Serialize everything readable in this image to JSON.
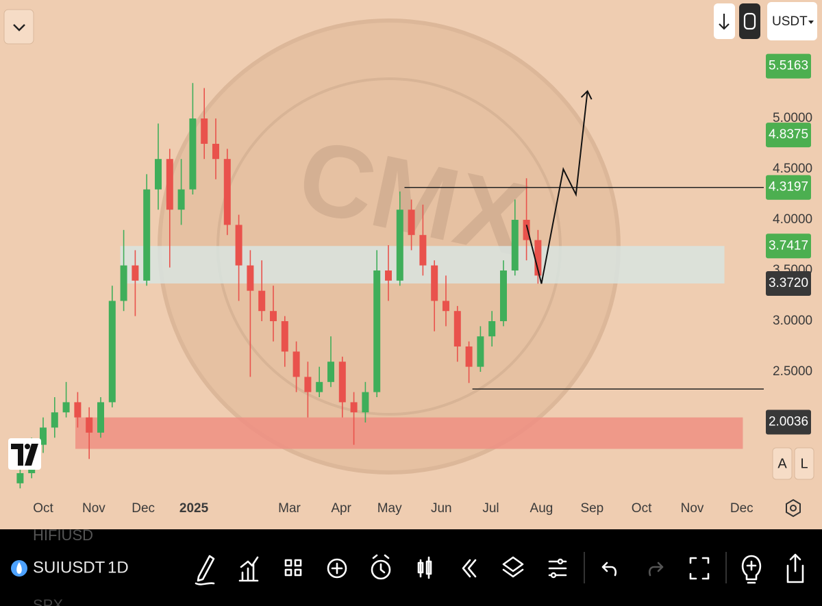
{
  "top_bar": {
    "currency": "USDT"
  },
  "chart_data": {
    "type": "candlestick",
    "x": [
      -2,
      -1,
      0,
      1,
      2,
      3,
      4,
      5,
      6,
      7,
      8,
      9,
      10,
      11,
      12,
      13,
      14,
      15,
      16,
      17,
      18,
      19,
      20,
      21,
      22,
      23,
      24,
      25,
      26,
      27,
      28,
      29,
      30,
      31,
      32,
      33,
      34,
      35,
      36,
      37,
      38,
      39,
      40,
      41,
      42,
      43
    ],
    "open": [
      1.4,
      1.5,
      1.78,
      1.95,
      2.1,
      2.2,
      2.05,
      1.9,
      2.2,
      3.2,
      3.55,
      3.4,
      4.3,
      4.6,
      4.1,
      4.3,
      5.0,
      4.75,
      4.6,
      3.95,
      3.55,
      3.3,
      3.1,
      3.0,
      2.7,
      2.45,
      2.3,
      2.4,
      2.6,
      2.2,
      2.1,
      2.3,
      3.5,
      3.4,
      4.1,
      3.85,
      3.55,
      3.2,
      3.1,
      2.75,
      2.55,
      2.85,
      3.0,
      3.5,
      4.0,
      3.8
    ],
    "high": [
      1.55,
      1.85,
      2.05,
      2.25,
      2.4,
      2.3,
      2.15,
      2.25,
      3.35,
      3.9,
      3.7,
      4.45,
      4.95,
      4.7,
      4.6,
      5.35,
      5.3,
      5.0,
      4.7,
      4.05,
      3.7,
      3.6,
      3.35,
      3.05,
      2.8,
      2.6,
      2.55,
      2.85,
      2.65,
      2.3,
      2.4,
      3.7,
      3.75,
      4.28,
      4.2,
      4.15,
      3.6,
      3.45,
      3.15,
      2.8,
      2.95,
      3.1,
      3.6,
      4.2,
      4.41,
      3.9
    ],
    "low": [
      1.35,
      1.45,
      1.7,
      1.85,
      2.05,
      1.95,
      1.64,
      1.85,
      2.15,
      3.1,
      3.05,
      3.35,
      4.1,
      3.53,
      3.95,
      4.25,
      4.6,
      4.4,
      3.85,
      3.2,
      2.45,
      3.0,
      2.8,
      2.55,
      2.3,
      2.05,
      2.25,
      2.35,
      2.05,
      1.78,
      2.0,
      2.25,
      3.2,
      3.35,
      3.7,
      3.45,
      2.9,
      2.95,
      2.6,
      2.39,
      2.5,
      2.75,
      2.95,
      3.45,
      3.6,
      3.37
    ],
    "close": [
      1.5,
      1.78,
      1.95,
      2.1,
      2.2,
      2.05,
      1.9,
      2.2,
      3.2,
      3.55,
      3.4,
      4.3,
      4.6,
      4.1,
      4.3,
      5.0,
      4.75,
      4.6,
      3.95,
      3.55,
      3.3,
      3.1,
      3.0,
      2.7,
      2.45,
      2.3,
      2.4,
      2.6,
      2.2,
      2.1,
      2.3,
      3.5,
      3.4,
      4.1,
      3.85,
      3.55,
      3.2,
      3.1,
      2.75,
      2.55,
      2.85,
      3.0,
      3.5,
      4.0,
      3.8,
      3.45
    ],
    "up_color": "#3fae5a",
    "down_color": "#e9524c",
    "xlim": [
      -3.75,
      62.62
    ],
    "xticks": [
      {
        "value": 0,
        "label": "Oct"
      },
      {
        "value": 4.4,
        "label": "Nov"
      },
      {
        "value": 8.7,
        "label": "Dec"
      },
      {
        "value": 13.1,
        "label": "2025",
        "bold": true
      },
      {
        "value": 21.4,
        "label": "Mar"
      },
      {
        "value": 25.9,
        "label": "Apr"
      },
      {
        "value": 30.1,
        "label": "May"
      },
      {
        "value": 34.6,
        "label": "Jun"
      },
      {
        "value": 38.9,
        "label": "Jul"
      },
      {
        "value": 43.3,
        "label": "Aug"
      },
      {
        "value": 47.7,
        "label": "Sep"
      },
      {
        "value": 52,
        "label": "Oct"
      },
      {
        "value": 56.4,
        "label": "Nov"
      },
      {
        "value": 60.7,
        "label": "Dec"
      }
    ],
    "ylim": [
      1.338,
      6.169
    ],
    "yticks": [
      {
        "value": 2.5,
        "label": "2.5000"
      },
      {
        "value": 3,
        "label": "3.0000"
      },
      {
        "value": 3.5,
        "label": "3.5000"
      },
      {
        "value": 4,
        "label": "4.0000"
      },
      {
        "value": 4.5,
        "label": "4.5000"
      },
      {
        "value": 5,
        "label": "5.0000"
      }
    ],
    "zones": [
      {
        "from": 6.7,
        "to": 59.2,
        "top": 3.7417,
        "bottom": 3.372,
        "color": "#d8e4e0"
      },
      {
        "from": 2.8,
        "to": 60.8,
        "top": 2.05,
        "bottom": 1.74,
        "color": "#ee8f83"
      }
    ],
    "levels": [
      {
        "from": 31.4,
        "value": 4.3197
      },
      {
        "from": 37.3,
        "value": 2.33
      }
    ],
    "projection": {
      "x": [
        42.0,
        43.3,
        45.2,
        46.3,
        47.3
      ],
      "y": [
        3.95,
        3.37,
        4.5,
        4.25,
        5.27
      ]
    },
    "price_tags": [
      {
        "value": 5.5163,
        "label": "5.5163",
        "color": "#4caf50"
      },
      {
        "value": 4.8375,
        "label": "4.8375",
        "color": "#4caf50"
      },
      {
        "value": 4.3197,
        "label": "4.3197",
        "color": "#4caf50"
      },
      {
        "value": 3.7417,
        "label": "3.7417",
        "color": "#4caf50"
      },
      {
        "value": 3.372,
        "label": "3.3720",
        "color": "#383838"
      },
      {
        "value": 2.0036,
        "label": "2.0036",
        "color": "#383838"
      }
    ],
    "watermark": "CMX"
  },
  "scale_buttons": {
    "auto": "A",
    "log": "L"
  },
  "bottom_bar": {
    "symbol": "SUIUSDT",
    "interval": "1D",
    "symbol_above": "HIFIUSD",
    "symbol_below": "SPX"
  }
}
